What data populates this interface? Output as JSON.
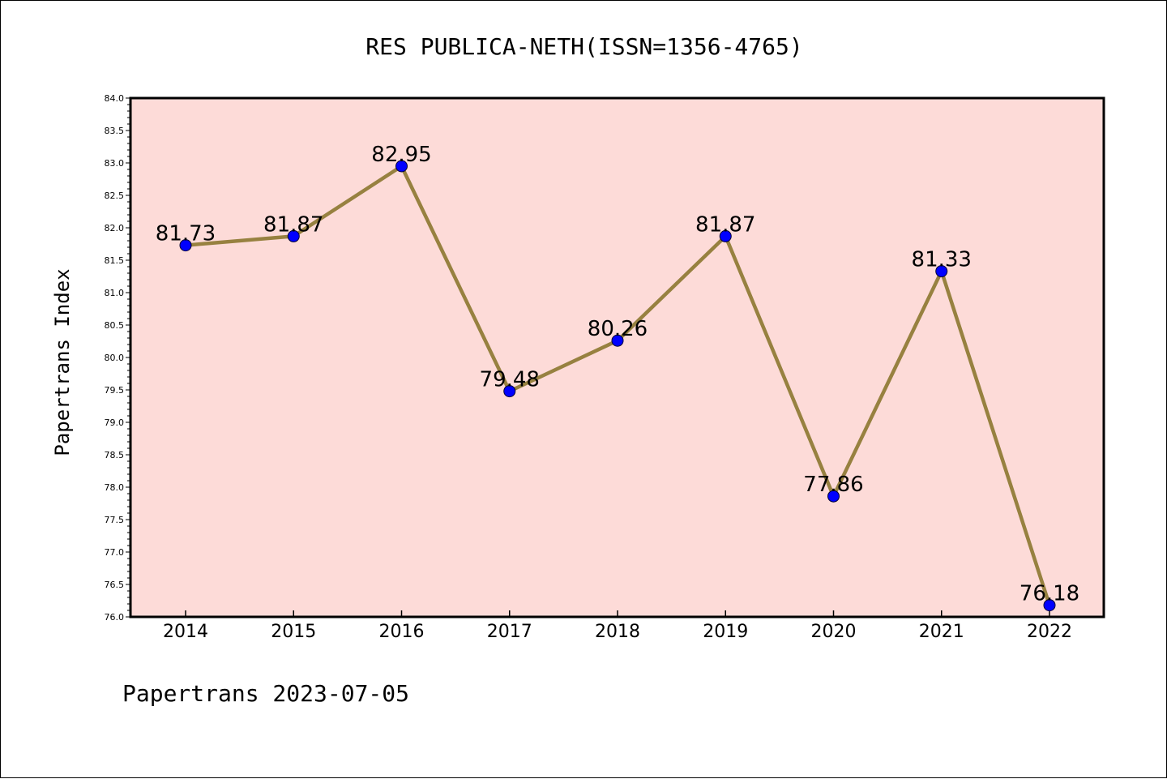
{
  "colors": {
    "plot_background": "#fddbd8",
    "line": "#978140",
    "marker": "#0000ff",
    "axis": "#000000"
  },
  "footer": "Papertrans 2023-07-05",
  "chart_data": {
    "type": "line",
    "title": "RES PUBLICA-NETH(ISSN=1356-4765)",
    "xlabel": "",
    "ylabel": "Papertrans Index",
    "categories": [
      "2014",
      "2015",
      "2016",
      "2017",
      "2018",
      "2019",
      "2020",
      "2021",
      "2022"
    ],
    "values": [
      81.73,
      81.87,
      82.95,
      79.48,
      80.26,
      81.87,
      77.86,
      81.33,
      76.18
    ],
    "labels": [
      "81.73",
      "81.87",
      "82.95",
      "79.48",
      "80.26",
      "81.87",
      "77.86",
      "81.33",
      "76.18"
    ],
    "ylim": [
      76.0,
      84.0
    ],
    "yticks": [
      "76.0",
      "76.5",
      "77.0",
      "77.5",
      "78.0",
      "78.5",
      "79.0",
      "79.5",
      "80.0",
      "80.5",
      "81.0",
      "81.5",
      "82.0",
      "82.5",
      "83.0",
      "83.5",
      "84.0"
    ],
    "grid": false,
    "legend": "none"
  }
}
